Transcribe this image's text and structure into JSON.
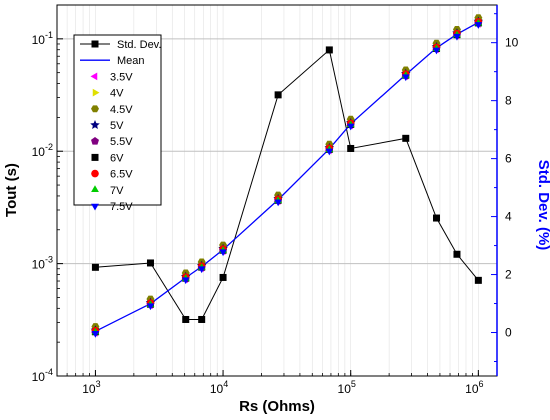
{
  "chart_data": {
    "type": "line",
    "xlabel": "Rs (Ohms)",
    "ylabel_left": "Tout (s)",
    "ylabel_right": "Std. Dev. (%)",
    "x_scale": "log",
    "y_left_scale": "log",
    "xlim": [
      500,
      1400000
    ],
    "ylim_left": [
      0.0001,
      0.2
    ],
    "ylim_right": [
      -1.5,
      11.3
    ],
    "x_ticks": [
      1000,
      10000,
      100000,
      1000000
    ],
    "x_tick_labels": [
      {
        "base": "10",
        "exp": "3"
      },
      {
        "base": "10",
        "exp": "4"
      },
      {
        "base": "10",
        "exp": "5"
      },
      {
        "base": "10",
        "exp": "6"
      }
    ],
    "y_left_ticks": [
      0.0001,
      0.001,
      0.01,
      0.1
    ],
    "y_left_tick_labels": [
      {
        "base": "10",
        "exp": "-4"
      },
      {
        "base": "10",
        "exp": "-3"
      },
      {
        "base": "10",
        "exp": "-2"
      },
      {
        "base": "10",
        "exp": "-1"
      }
    ],
    "y_right_ticks": [
      0,
      2,
      4,
      6,
      8,
      10
    ],
    "y_right_tick_labels": [
      "0",
      "2",
      "4",
      "6",
      "8",
      "10"
    ],
    "grid": true,
    "legend_position": "top-left",
    "x": [
      1000,
      2700,
      5100,
      6800,
      10000,
      27000,
      68000,
      100000,
      270000,
      470000,
      680000,
      1000000
    ],
    "mean": [
      0.00025,
      0.00044,
      0.00075,
      0.00094,
      0.00133,
      0.0037,
      0.0105,
      0.0175,
      0.048,
      0.083,
      0.11,
      0.14
    ],
    "voltage_series": [
      {
        "name": "3.5V",
        "marker": "triangle-left",
        "color": "#ff00ff",
        "factor": 0.97
      },
      {
        "name": "4V",
        "marker": "triangle-right",
        "color": "#e0e000",
        "factor": 1.05
      },
      {
        "name": "4.5V",
        "marker": "hexagon",
        "color": "#808000",
        "factor": 1.1
      },
      {
        "name": "5V",
        "marker": "star",
        "color": "#000080",
        "factor": 1.02
      },
      {
        "name": "5.5V",
        "marker": "pentagon",
        "color": "#800080",
        "factor": 1.0
      },
      {
        "name": "6V",
        "marker": "square",
        "color": "#000000",
        "factor": 0.99
      },
      {
        "name": "6.5V",
        "marker": "circle",
        "color": "#ff0000",
        "factor": 1.01
      },
      {
        "name": "7V",
        "marker": "triangle-up",
        "color": "#00cc00",
        "factor": 0.98
      },
      {
        "name": "7.5V",
        "marker": "triangle-down",
        "color": "#0000ff",
        "factor": 0.96
      }
    ],
    "std_dev": {
      "name": "Std. Dev.",
      "axis": "right",
      "values": [
        2.25,
        2.4,
        0.45,
        0.45,
        1.9,
        8.2,
        9.75,
        6.35,
        6.7,
        3.95,
        2.7,
        1.8
      ]
    },
    "mean_series": {
      "name": "Mean",
      "color": "#0000ff"
    },
    "colors": {
      "right_axis": "#0000ff",
      "grid": "#c0c0c0",
      "std_dev_line": "#000000"
    }
  }
}
